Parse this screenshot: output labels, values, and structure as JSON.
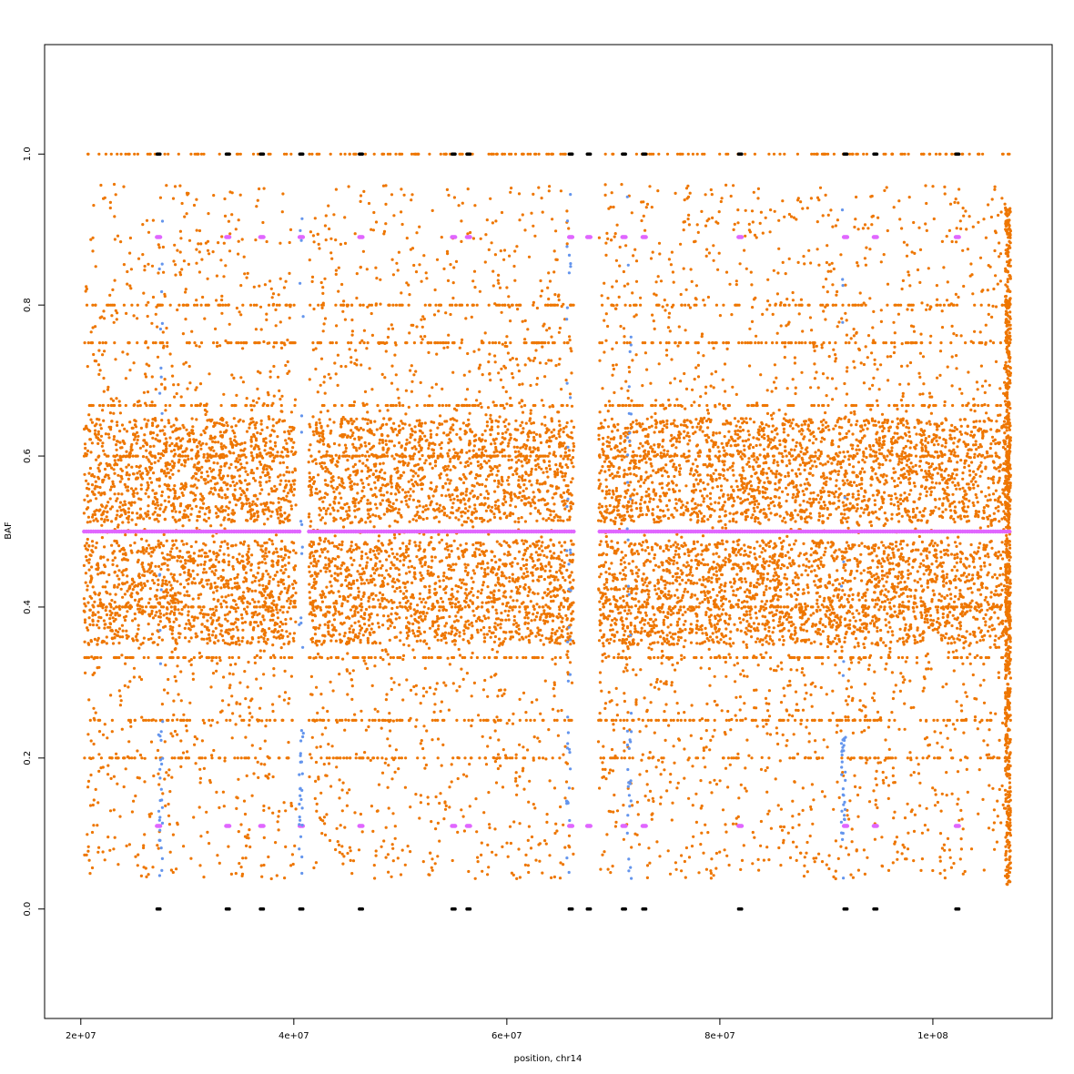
{
  "chart_data": {
    "type": "scatter",
    "title": "",
    "xlabel": "position, chr14",
    "ylabel": "BAF",
    "xlim": [
      16600000,
      111200000
    ],
    "ylim": [
      -0.145,
      1.145
    ],
    "x_ticks": [
      20000000,
      40000000,
      60000000,
      80000000,
      100000000
    ],
    "x_tick_labels": [
      "2e+07",
      "4e+07",
      "6e+07",
      "8e+07",
      "1e+08"
    ],
    "y_ticks": [
      0.0,
      0.2,
      0.4,
      0.6,
      0.8,
      1.0
    ],
    "y_tick_labels": [
      "0.0",
      "0.2",
      "0.4",
      "0.6",
      "0.8",
      "1.0"
    ],
    "x_range_of_data": [
      20300000,
      107300000
    ],
    "grid": false,
    "legend": "none",
    "colors": {
      "heterozygous": "#ee7600",
      "homozygous": "#000000",
      "germline_het": "#e066ff",
      "germline_hom": "#e066ff",
      "outlier": "#6495ed"
    },
    "series": [
      {
        "color_key": "heterozygous",
        "description_bands": {
          "dense_band": [
            0.35,
            0.65
          ],
          "sparse_band": [
            0.04,
            0.96
          ],
          "stripe_levels": [
            0.2,
            0.25,
            0.333,
            0.4,
            0.6,
            0.667,
            0.75,
            0.8,
            1.0
          ]
        }
      },
      {
        "color_key": "germline_het",
        "levels": [
          0.5,
          0.11,
          0.89
        ],
        "clusters_x": [
          27300000,
          33800000,
          37000000,
          40700000,
          46300000,
          55000000,
          56400000,
          66000000,
          67700000,
          71000000,
          72900000,
          81900000,
          91800000,
          94600000,
          102300000
        ]
      },
      {
        "color_key": "homozygous",
        "levels": [
          0.0,
          1.0
        ],
        "clusters_x": [
          27300000,
          33800000,
          37000000,
          40700000,
          46300000,
          55000000,
          56400000,
          66000000,
          67700000,
          71000000,
          72900000,
          81900000,
          91800000,
          94600000,
          102300000
        ]
      },
      {
        "color_key": "outlier",
        "clusters_x": [
          27500000,
          40700000,
          65800000,
          71500000,
          91600000
        ]
      }
    ],
    "gaps": [
      [
        40200000,
        41400000
      ],
      [
        66300000,
        68600000
      ]
    ]
  }
}
